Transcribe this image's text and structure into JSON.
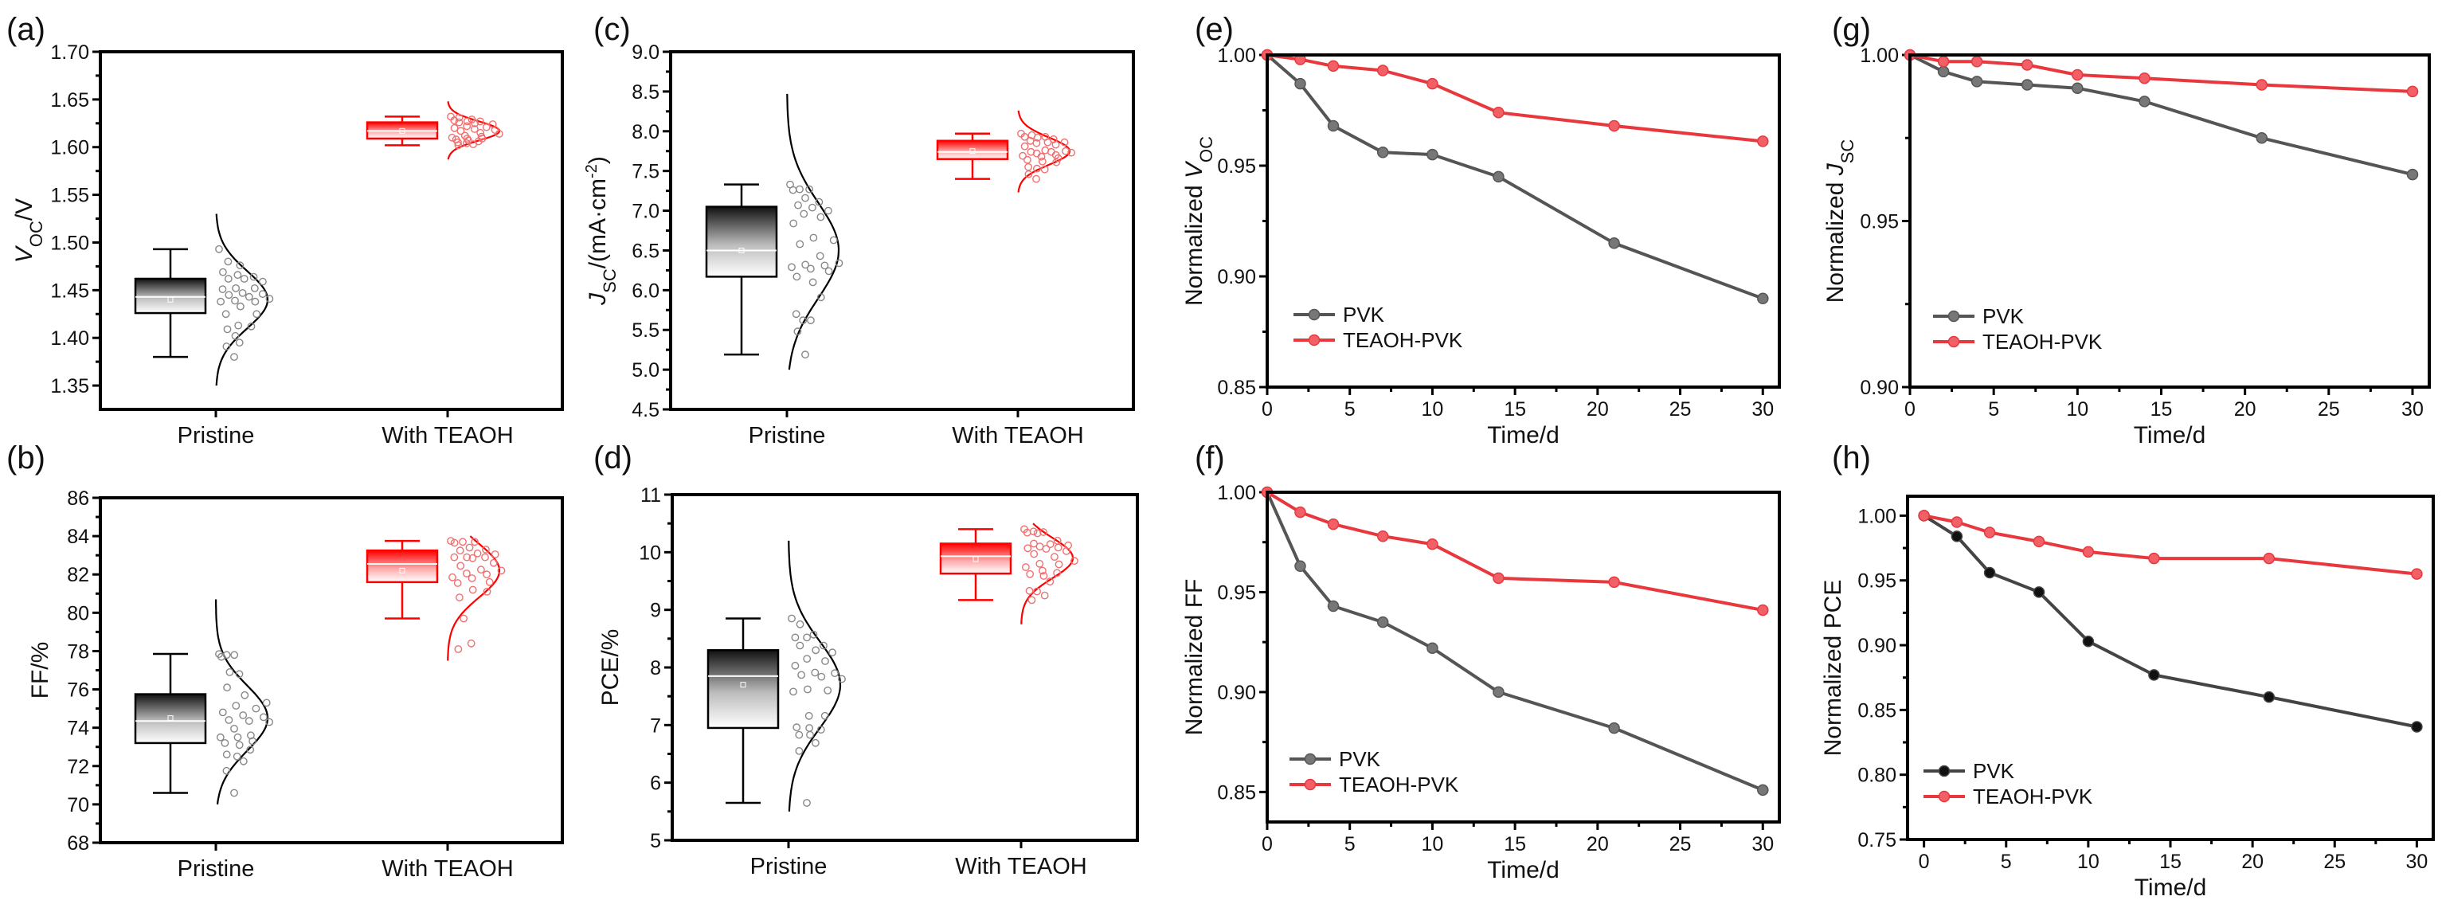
{
  "chart_data": [
    {
      "id": "a",
      "panel_label": "(a)",
      "type": "box",
      "ylabel": [
        {
          "text": "V",
          "style": "italic"
        },
        {
          "text": "OC",
          "style": "sub"
        },
        {
          "text": "/V",
          "style": "normal"
        }
      ],
      "ylim": [
        1.325,
        1.7
      ],
      "yticks": [
        1.35,
        1.4,
        1.45,
        1.5,
        1.55,
        1.6,
        1.65,
        1.7
      ],
      "ytick_labels": [
        "1.35",
        "1.40",
        "1.45",
        "1.50",
        "1.55",
        "1.60",
        "1.65",
        "1.70"
      ],
      "categories": [
        "Pristine",
        "With TEAOH"
      ],
      "groups": [
        {
          "min": 1.38,
          "q1": 1.426,
          "median": 1.443,
          "mean": 1.44,
          "q3": 1.462,
          "max": 1.493,
          "fit_mean": 1.44,
          "fit_sd": 0.03,
          "fit_range": [
            1.35,
            1.53
          ],
          "color": "#000000",
          "points": [
            1.493,
            1.48,
            1.476,
            1.469,
            1.466,
            1.464,
            1.462,
            1.462,
            1.459,
            1.452,
            1.452,
            1.451,
            1.447,
            1.446,
            1.445,
            1.443,
            1.441,
            1.439,
            1.438,
            1.438,
            1.433,
            1.425,
            1.425,
            1.413,
            1.412,
            1.409,
            1.402,
            1.395,
            1.391,
            1.38
          ]
        },
        {
          "min": 1.602,
          "q1": 1.609,
          "median": 1.617,
          "mean": 1.617,
          "q3": 1.626,
          "max": 1.632,
          "fit_mean": 1.617,
          "fit_sd": 0.01,
          "fit_range": [
            1.587,
            1.648
          ],
          "color": "#ff0000",
          "points": [
            1.632,
            1.631,
            1.629,
            1.628,
            1.627,
            1.627,
            1.626,
            1.625,
            1.624,
            1.622,
            1.621,
            1.62,
            1.619,
            1.618,
            1.617,
            1.615,
            1.614,
            1.612,
            1.611,
            1.61,
            1.609,
            1.609,
            1.608,
            1.607,
            1.606,
            1.605,
            1.604,
            1.603,
            1.602
          ]
        }
      ]
    },
    {
      "id": "b",
      "panel_label": "(b)",
      "type": "box",
      "ylabel": [
        {
          "text": "FF/%",
          "style": "normal"
        }
      ],
      "ylim": [
        68,
        86
      ],
      "yticks": [
        68,
        70,
        72,
        74,
        76,
        78,
        80,
        82,
        84,
        86
      ],
      "ytick_labels": [
        "68",
        "70",
        "72",
        "74",
        "76",
        "78",
        "80",
        "82",
        "84",
        "86"
      ],
      "categories": [
        "Pristine",
        "With TEAOH"
      ],
      "groups": [
        {
          "min": 70.6,
          "q1": 73.2,
          "median": 74.35,
          "mean": 74.5,
          "q3": 75.75,
          "max": 77.85,
          "fit_mean": 74.5,
          "fit_sd": 1.7,
          "fit_range": [
            70.0,
            80.7
          ],
          "color": "#000000",
          "points": [
            77.85,
            77.8,
            77.8,
            77.7,
            76.9,
            76.8,
            76.1,
            75.7,
            75.3,
            75.15,
            75.0,
            74.8,
            74.65,
            74.55,
            74.4,
            74.35,
            74.3,
            73.95,
            73.6,
            73.5,
            73.5,
            73.3,
            73.2,
            73.1,
            72.85,
            72.6,
            72.5,
            72.25,
            71.75,
            70.6
          ]
        },
        {
          "min": 79.7,
          "q1": 81.6,
          "median": 82.55,
          "mean": 82.2,
          "q3": 83.25,
          "max": 83.75,
          "fit_mean": 82.2,
          "fit_sd": 1.4,
          "fit_range": [
            77.5,
            84.0
          ],
          "color": "#ff0000",
          "points": [
            83.75,
            83.7,
            83.7,
            83.65,
            83.4,
            83.3,
            83.25,
            83.1,
            83.05,
            82.9,
            82.9,
            82.9,
            82.85,
            82.6,
            82.45,
            82.25,
            82.2,
            82.05,
            82.0,
            81.85,
            81.8,
            81.6,
            81.55,
            81.2,
            81.1,
            80.8,
            79.7,
            78.4,
            78.1
          ]
        }
      ]
    },
    {
      "id": "c",
      "panel_label": "(c)",
      "type": "box",
      "ylabel": [
        {
          "text": "J",
          "style": "italic"
        },
        {
          "text": "SC",
          "style": "sub"
        },
        {
          "text": "/(mA·cm",
          "style": "normal"
        },
        {
          "text": "-2",
          "style": "sup"
        },
        {
          "text": ")",
          "style": "normal"
        }
      ],
      "ylim": [
        4.5,
        9.0
      ],
      "yticks": [
        4.5,
        5.0,
        5.5,
        6.0,
        6.5,
        7.0,
        7.5,
        8.0,
        8.5,
        9.0
      ],
      "ytick_labels": [
        "4.5",
        "5.0",
        "5.5",
        "6.0",
        "6.5",
        "7.0",
        "7.5",
        "8.0",
        "8.5",
        "9.0"
      ],
      "categories": [
        "Pristine",
        "With TEAOH"
      ],
      "groups": [
        {
          "min": 5.19,
          "q1": 6.17,
          "median": 6.5,
          "mean": 6.5,
          "q3": 7.05,
          "max": 7.33,
          "fit_mean": 6.5,
          "fit_sd": 0.6,
          "fit_range": [
            5.0,
            8.47
          ],
          "color": "#000000",
          "points": [
            7.33,
            7.27,
            7.27,
            7.26,
            7.16,
            7.11,
            7.07,
            7.04,
            7.0,
            6.96,
            6.92,
            6.84,
            6.66,
            6.63,
            6.58,
            6.43,
            6.34,
            6.32,
            6.31,
            6.29,
            6.27,
            6.24,
            6.17,
            6.1,
            5.91,
            5.7,
            5.62,
            5.62,
            5.48,
            5.19
          ]
        },
        {
          "min": 7.4,
          "q1": 7.65,
          "median": 7.74,
          "mean": 7.75,
          "q3": 7.88,
          "max": 7.97,
          "fit_mean": 7.75,
          "fit_sd": 0.17,
          "fit_range": [
            7.23,
            8.26
          ],
          "color": "#ff0000",
          "points": [
            7.97,
            7.95,
            7.93,
            7.93,
            7.92,
            7.9,
            7.88,
            7.86,
            7.86,
            7.85,
            7.83,
            7.81,
            7.76,
            7.75,
            7.74,
            7.74,
            7.73,
            7.72,
            7.7,
            7.69,
            7.68,
            7.66,
            7.64,
            7.62,
            7.61,
            7.55,
            7.53,
            7.52,
            7.46,
            7.4
          ]
        }
      ]
    },
    {
      "id": "d",
      "panel_label": "(d)",
      "type": "box",
      "ylabel": [
        {
          "text": "PCE/%",
          "style": "normal"
        }
      ],
      "ylim": [
        5,
        11
      ],
      "yticks": [
        5,
        6,
        7,
        8,
        9,
        10,
        11
      ],
      "ytick_labels": [
        "5",
        "6",
        "7",
        "8",
        "9",
        "10",
        "11"
      ],
      "categories": [
        "Pristine",
        "With TEAOH"
      ],
      "groups": [
        {
          "min": 5.65,
          "q1": 6.95,
          "median": 7.85,
          "mean": 7.7,
          "q3": 8.3,
          "max": 8.85,
          "fit_mean": 7.7,
          "fit_sd": 0.75,
          "fit_range": [
            5.5,
            10.2
          ],
          "color": "#000000",
          "points": [
            8.85,
            8.75,
            8.57,
            8.52,
            8.52,
            8.38,
            8.38,
            8.3,
            8.26,
            8.15,
            8.11,
            8.03,
            7.91,
            7.9,
            7.87,
            7.84,
            7.8,
            7.62,
            7.6,
            7.58,
            7.16,
            7.16,
            6.96,
            6.95,
            6.92,
            6.83,
            6.83,
            6.69,
            6.55,
            5.65
          ]
        },
        {
          "min": 9.17,
          "q1": 9.63,
          "median": 9.93,
          "mean": 9.88,
          "q3": 10.15,
          "max": 10.4,
          "fit_mean": 9.9,
          "fit_sd": 0.35,
          "fit_range": [
            8.75,
            10.5
          ],
          "color": "#ff0000",
          "points": [
            10.4,
            10.36,
            10.35,
            10.34,
            10.33,
            10.2,
            10.15,
            10.14,
            10.12,
            10.1,
            10.08,
            10.07,
            10.06,
            10.02,
            9.97,
            9.92,
            9.85,
            9.8,
            9.79,
            9.74,
            9.68,
            9.64,
            9.62,
            9.59,
            9.49,
            9.33,
            9.32,
            9.25,
            9.17
          ]
        }
      ]
    },
    {
      "id": "e",
      "panel_label": "(e)",
      "type": "line",
      "ylabel": [
        {
          "text": "Normalized ",
          "style": "normal"
        },
        {
          "text": "V",
          "style": "italic"
        },
        {
          "text": "OC",
          "style": "sub"
        }
      ],
      "xlabel": "Time/d",
      "xlim": [
        0,
        31
      ],
      "ylim": [
        0.85,
        1.0
      ],
      "xticks": [
        0,
        5,
        10,
        15,
        20,
        25,
        30
      ],
      "xtick_labels": [
        "0",
        "5",
        "10",
        "15",
        "20",
        "25",
        "30"
      ],
      "yticks": [
        0.85,
        0.9,
        0.95,
        1.0
      ],
      "ytick_labels": [
        "0.85",
        "0.90",
        "0.95",
        "1.00"
      ],
      "x": [
        0,
        2,
        4,
        7,
        10,
        14,
        21,
        30
      ],
      "series": [
        {
          "name": "PVK",
          "color": "#555555",
          "marker": "#777777",
          "values": [
            1.0,
            0.987,
            0.968,
            0.956,
            0.955,
            0.945,
            0.915,
            0.89
          ]
        },
        {
          "name": "TEAOH-PVK",
          "color": "#e8383d",
          "marker": "#f06066",
          "values": [
            1.0,
            0.998,
            0.995,
            0.993,
            0.987,
            0.974,
            0.968,
            0.961
          ]
        }
      ],
      "legend": "bottom-left"
    },
    {
      "id": "f",
      "panel_label": "(f)",
      "type": "line",
      "ylabel": [
        {
          "text": "Normalized FF",
          "style": "normal"
        }
      ],
      "xlabel": "Time/d",
      "xlim": [
        0,
        31
      ],
      "ylim": [
        0.835,
        1.0
      ],
      "xticks": [
        0,
        5,
        10,
        15,
        20,
        25,
        30
      ],
      "xtick_labels": [
        "0",
        "5",
        "10",
        "15",
        "20",
        "25",
        "30"
      ],
      "yticks": [
        0.85,
        0.9,
        0.95,
        1.0
      ],
      "ytick_labels": [
        "0.85",
        "0.90",
        "0.95",
        "1.00"
      ],
      "x": [
        0,
        2,
        4,
        7,
        10,
        14,
        21,
        30
      ],
      "series": [
        {
          "name": "PVK",
          "color": "#555555",
          "marker": "#777777",
          "values": [
            1.0,
            0.963,
            0.943,
            0.935,
            0.922,
            0.9,
            0.882,
            0.851
          ]
        },
        {
          "name": "TEAOH-PVK",
          "color": "#e8383d",
          "marker": "#f06066",
          "values": [
            1.0,
            0.99,
            0.984,
            0.978,
            0.974,
            0.957,
            0.955,
            0.941
          ]
        }
      ],
      "legend": "bottom-left"
    },
    {
      "id": "g",
      "panel_label": "(g)",
      "type": "line",
      "ylabel": [
        {
          "text": "Normalized  ",
          "style": "normal"
        },
        {
          "text": "J",
          "style": "italic"
        },
        {
          "text": "SC",
          "style": "sub"
        }
      ],
      "xlabel": "Time/d",
      "xlim": [
        0,
        31
      ],
      "ylim": [
        0.9,
        1.0
      ],
      "xticks": [
        0,
        5,
        10,
        15,
        20,
        25,
        30
      ],
      "xtick_labels": [
        "0",
        "5",
        "10",
        "15",
        "20",
        "25",
        "30"
      ],
      "yticks": [
        0.9,
        0.95,
        1.0
      ],
      "ytick_labels": [
        "0.90",
        "0.95",
        "1.00"
      ],
      "x": [
        0,
        2,
        4,
        7,
        10,
        14,
        21,
        30
      ],
      "series": [
        {
          "name": "PVK",
          "color": "#555555",
          "marker": "#777777",
          "values": [
            1.0,
            0.995,
            0.992,
            0.991,
            0.99,
            0.986,
            0.975,
            0.964
          ]
        },
        {
          "name": "TEAOH-PVK",
          "color": "#e8383d",
          "marker": "#f06066",
          "values": [
            1.0,
            0.998,
            0.998,
            0.997,
            0.994,
            0.993,
            0.991,
            0.989
          ]
        }
      ],
      "legend": "bottom-left"
    },
    {
      "id": "h",
      "panel_label": "(h)",
      "type": "line",
      "ylabel": [
        {
          "text": "Normalized PCE",
          "style": "normal"
        }
      ],
      "xlabel": "Time/d",
      "xlim": [
        -1,
        31
      ],
      "ylim": [
        0.75,
        1.015
      ],
      "xticks": [
        0,
        5,
        10,
        15,
        20,
        25,
        30
      ],
      "xtick_labels": [
        "0",
        "5",
        "10",
        "15",
        "20",
        "25",
        "30"
      ],
      "yticks": [
        0.75,
        0.8,
        0.85,
        0.9,
        0.95,
        1.0
      ],
      "ytick_labels": [
        "0.75",
        "0.80",
        "0.85",
        "0.90",
        "0.95",
        "1.00"
      ],
      "x": [
        0,
        2,
        4,
        7,
        10,
        14,
        21,
        30
      ],
      "series": [
        {
          "name": "PVK",
          "color": "#444444",
          "marker": "#111111",
          "values": [
            1.0,
            0.984,
            0.956,
            0.941,
            0.903,
            0.877,
            0.86,
            0.837
          ]
        },
        {
          "name": "TEAOH-PVK",
          "color": "#e8383d",
          "marker": "#f06066",
          "values": [
            1.0,
            0.995,
            0.987,
            0.98,
            0.972,
            0.967,
            0.967,
            0.955
          ]
        }
      ],
      "legend": "bottom-left"
    }
  ]
}
